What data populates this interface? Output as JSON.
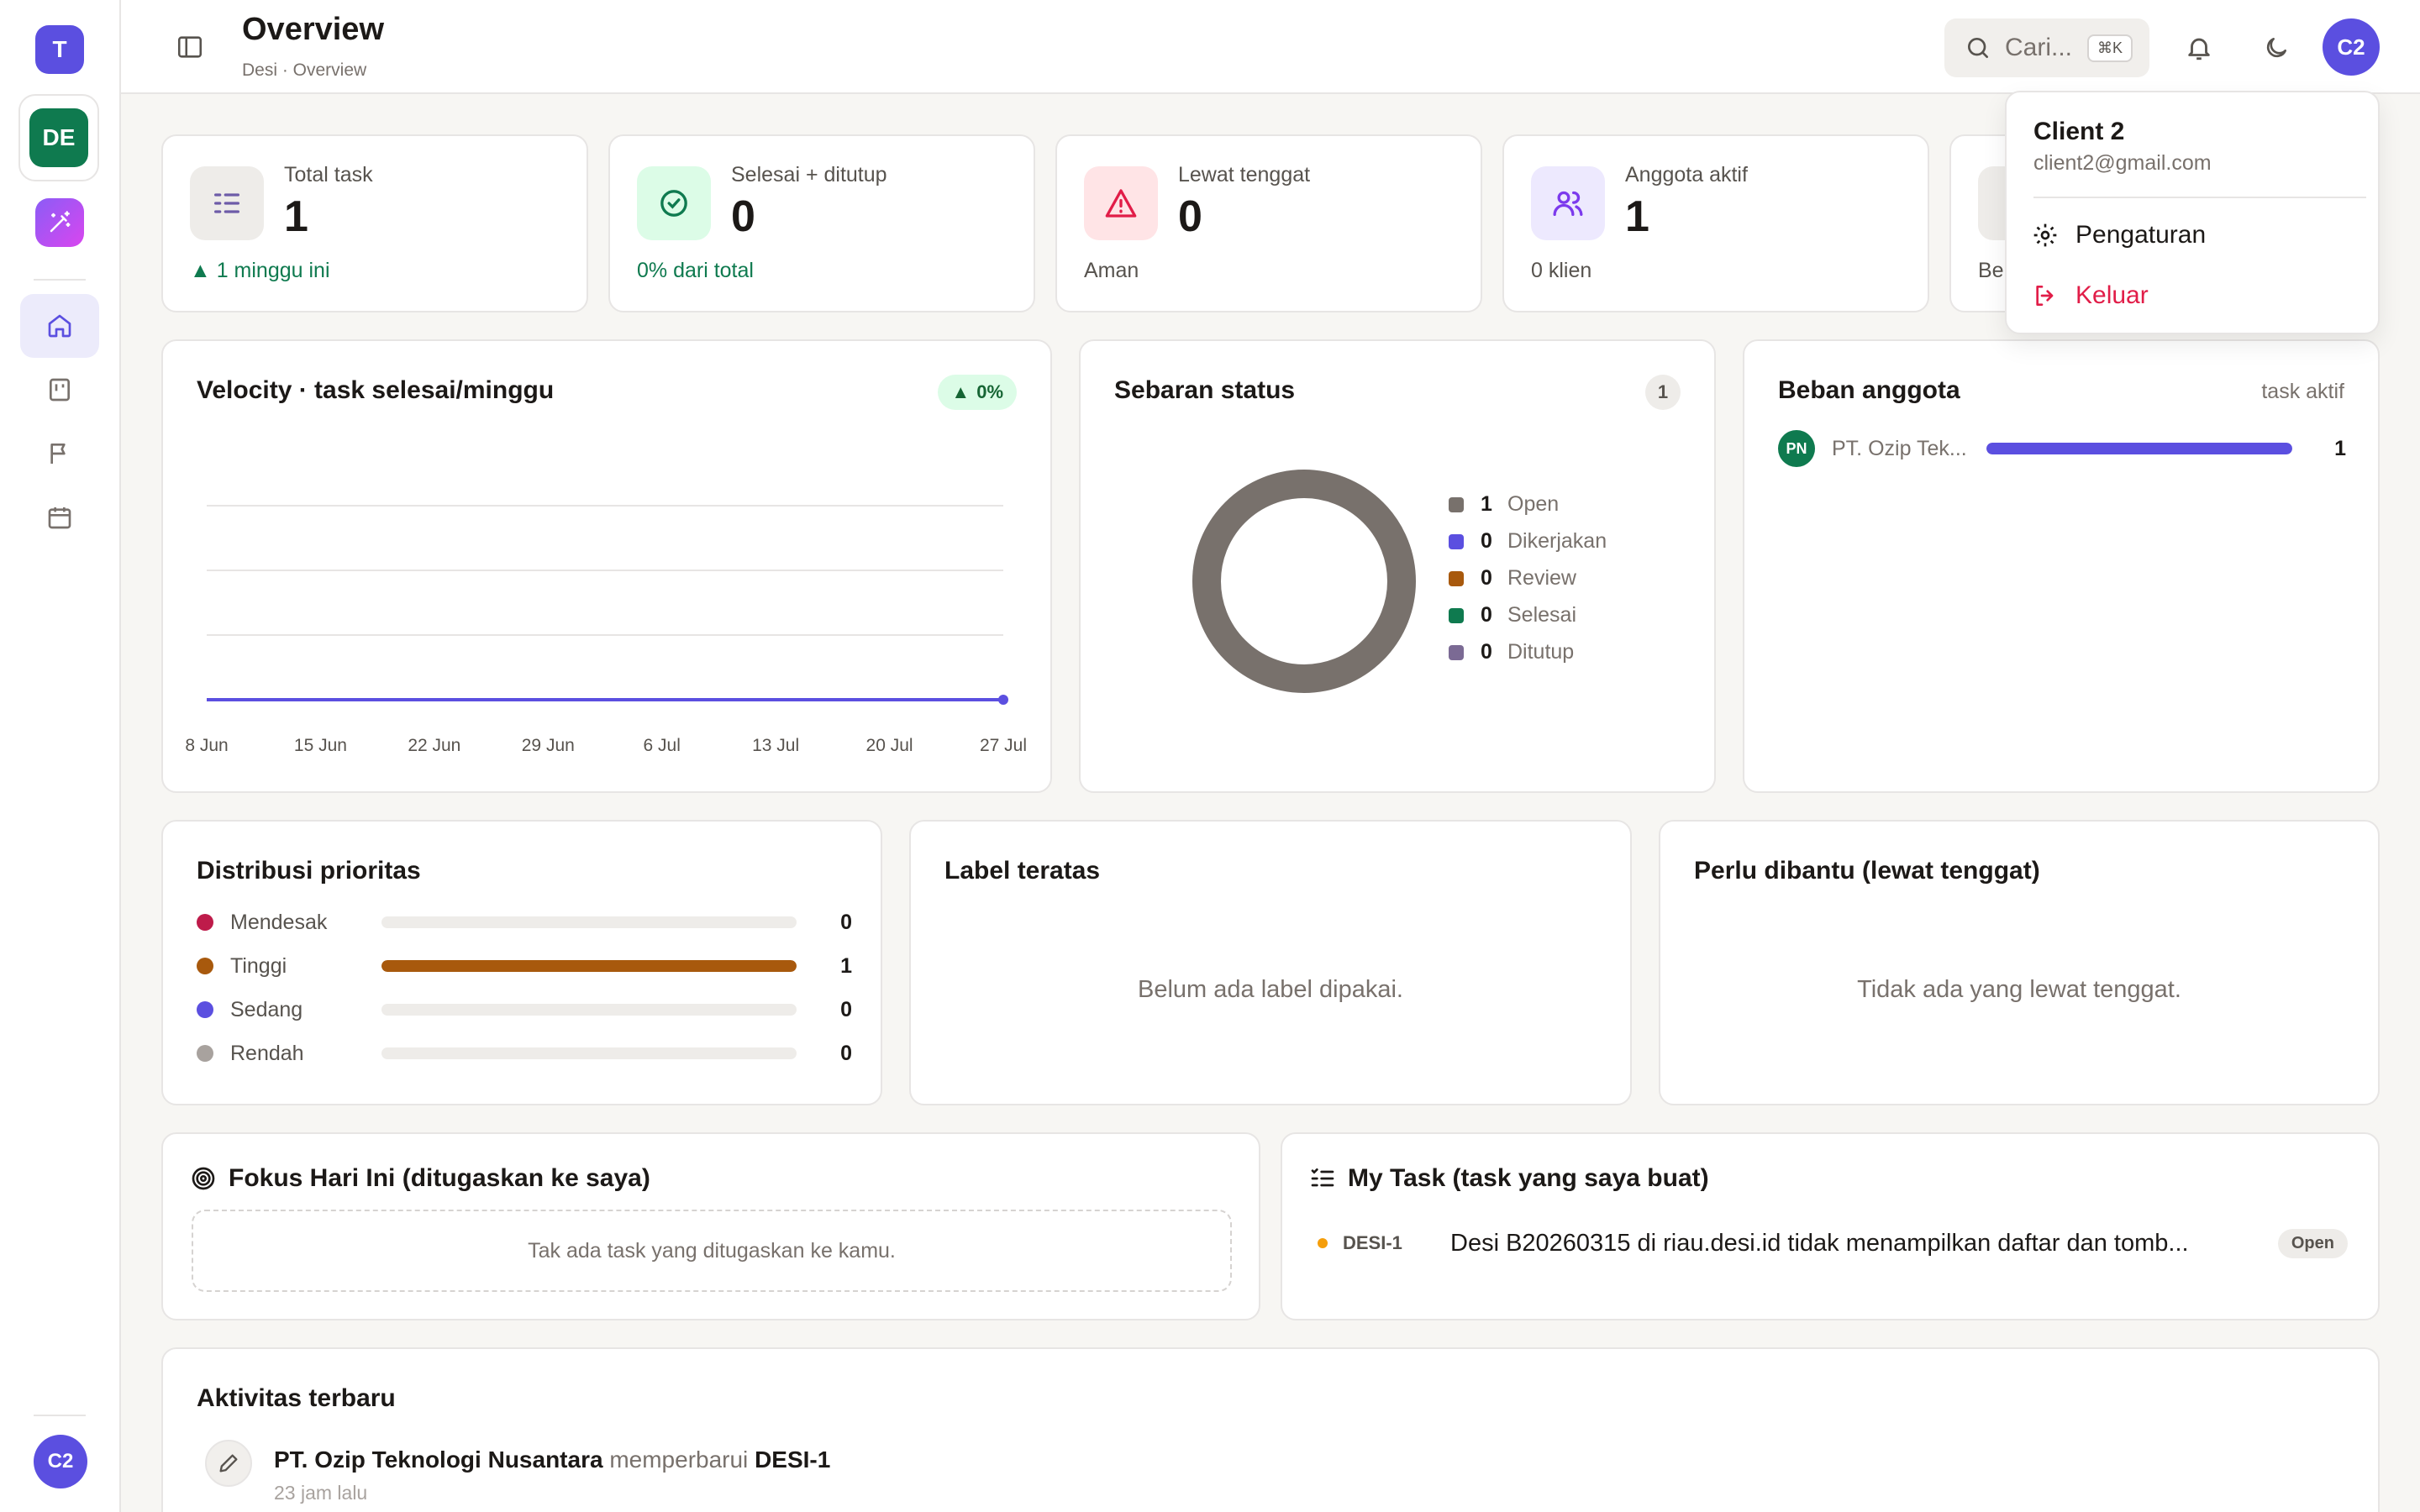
{
  "sidebar": {
    "workspace_initial": "T",
    "project_initials": "DE",
    "user_initials": "C2"
  },
  "header": {
    "title": "Overview",
    "breadcrumb": "Desi · Overview",
    "search_placeholder": "Cari...",
    "search_shortcut": "⌘K",
    "avatar_initials": "C2"
  },
  "stats": [
    {
      "label": "Total task",
      "value": "1",
      "sub": "1 minggu ini",
      "sub_prefix": "▲",
      "color": "#78716c"
    },
    {
      "label": "Selesai + ditutup",
      "value": "0",
      "sub": "0% dari total",
      "color": "#0f7a4f"
    },
    {
      "label": "Lewat tenggat",
      "value": "0",
      "sub": "Aman",
      "color": "#e11d48"
    },
    {
      "label": "Anggota aktif",
      "value": "1",
      "sub": "0 klien",
      "color": "#7c3aed"
    },
    {
      "sub": "Be"
    }
  ],
  "velocity": {
    "title": "Velocity · task selesai/minggu",
    "badge": "0%",
    "badge_prefix": "▲"
  },
  "chart_data": {
    "type": "line",
    "title": "Velocity · task selesai/minggu",
    "categories": [
      "8 Jun",
      "15 Jun",
      "22 Jun",
      "29 Jun",
      "6 Jul",
      "13 Jul",
      "20 Jul",
      "27 Jul"
    ],
    "series": [
      {
        "values": [
          0,
          0,
          0,
          0,
          0,
          0,
          0,
          0
        ],
        "color": "#5b4fe0"
      }
    ],
    "ylim": [
      0,
      3
    ],
    "grid": true
  },
  "status": {
    "title": "Sebaran status",
    "badge": "1",
    "items": [
      {
        "count": "1",
        "label": "Open",
        "color": "#78716c"
      },
      {
        "count": "0",
        "label": "Dikerjakan",
        "color": "#5b4fe0"
      },
      {
        "count": "0",
        "label": "Review",
        "color": "#a8590d"
      },
      {
        "count": "0",
        "label": "Selesai",
        "color": "#0f7a4f"
      },
      {
        "count": "0",
        "label": "Ditutup",
        "color": "#7b6a94"
      }
    ]
  },
  "workload": {
    "title": "Beban anggota",
    "hint": "task aktif",
    "rows": [
      {
        "initials": "PN",
        "name": "PT. Ozip Tek...",
        "value": "1",
        "fraction": 1
      }
    ]
  },
  "priority": {
    "title": "Distribusi prioritas",
    "rows": [
      {
        "label": "Mendesak",
        "value": "0",
        "fraction": 0,
        "color": "#be1b4a"
      },
      {
        "label": "Tinggi",
        "value": "1",
        "fraction": 1,
        "color": "#a8590d"
      },
      {
        "label": "Sedang",
        "value": "0",
        "fraction": 0,
        "color": "#5b4fe0"
      },
      {
        "label": "Rendah",
        "value": "0",
        "fraction": 0,
        "color": "#a8a29e"
      }
    ]
  },
  "labels": {
    "title": "Label teratas",
    "empty": "Belum ada label dipakai."
  },
  "overdue": {
    "title": "Perlu dibantu (lewat tenggat)",
    "empty": "Tidak ada yang lewat tenggat."
  },
  "focus": {
    "title": "Fokus Hari Ini (ditugaskan ke saya)",
    "empty": "Tak ada task yang ditugaskan ke kamu."
  },
  "mytask": {
    "title": "My Task (task yang saya buat)",
    "items": [
      {
        "key": "DESI-1",
        "title": "Desi B20260315 di riau.desi.id tidak menampilkan daftar dan tomb...",
        "status": "Open"
      }
    ]
  },
  "activity": {
    "title": "Aktivitas terbaru",
    "items": [
      {
        "actor": "PT. Ozip Teknologi Nusantara",
        "verb": "memperbarui",
        "target": "DESI-1",
        "time": "23 jam lalu"
      }
    ]
  },
  "user_menu": {
    "name": "Client 2",
    "email": "client2@gmail.com",
    "settings": "Pengaturan",
    "logout": "Keluar"
  }
}
